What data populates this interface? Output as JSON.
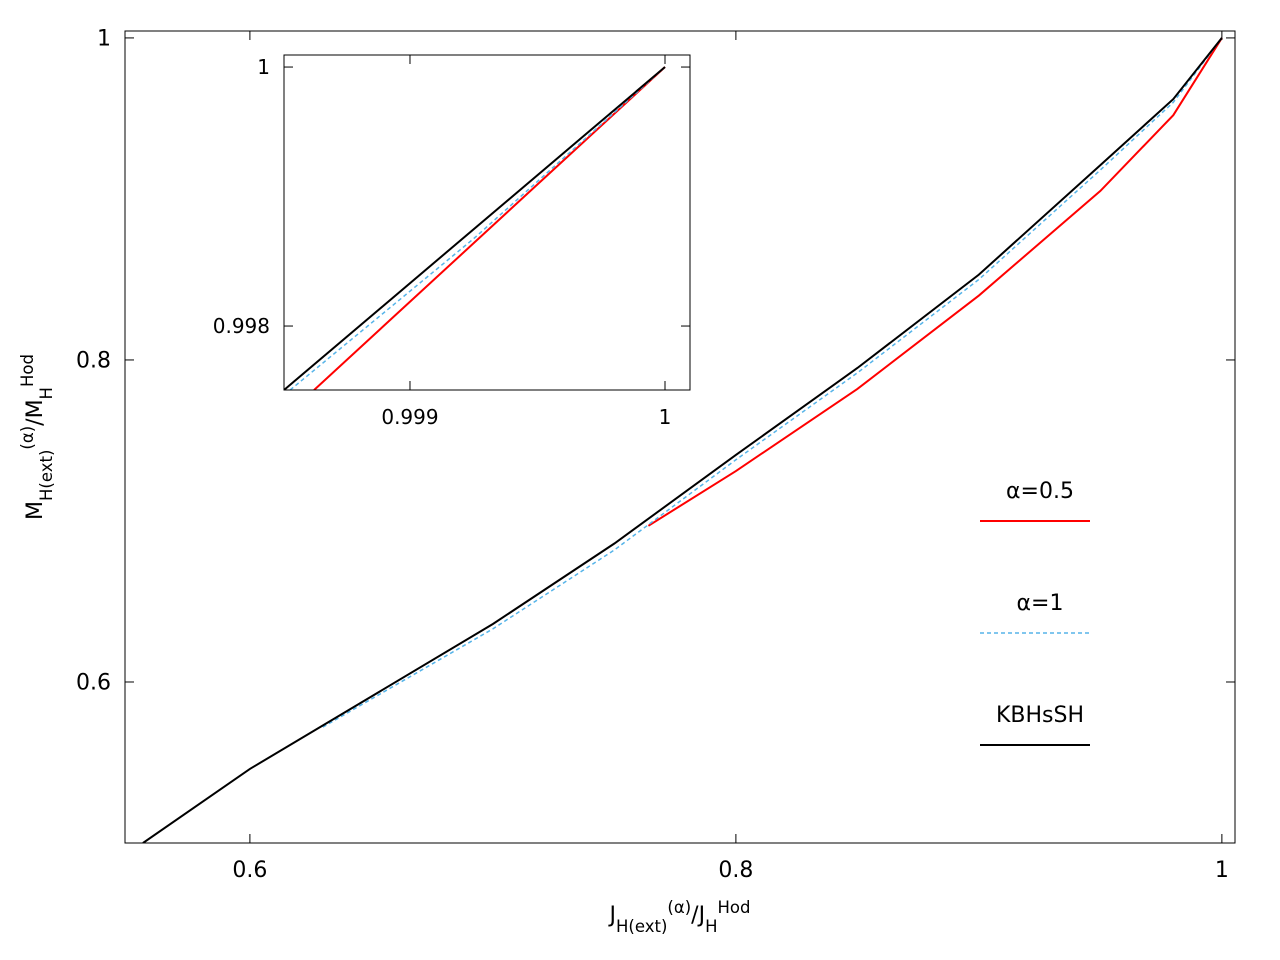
{
  "chart_data": [
    {
      "type": "line",
      "xlabel": [
        "J",
        "H(ext)",
        "(α)",
        "/J",
        "H",
        "Hod"
      ],
      "ylabel": [
        "M",
        "H(ext)",
        "(α)",
        "/M",
        "H",
        "Hod"
      ],
      "xlim": [
        0.5486,
        1.0054
      ],
      "ylim": [
        0.5,
        1.0043
      ],
      "xticks": [
        0.6,
        0.8,
        1
      ],
      "yticks": [
        0.6,
        0.8,
        1
      ],
      "legend": "right",
      "series": [
        {
          "name": "α=0.5",
          "color": "#ff0000",
          "dash": false,
          "x": [
            0.764,
            0.8,
            0.85,
            0.9,
            0.95,
            0.98,
            1
          ],
          "values": [
            0.697,
            0.731,
            0.782,
            0.84,
            0.905,
            0.952,
            1
          ]
        },
        {
          "name": "α=1",
          "color": "#56b4e9",
          "dash": true,
          "x": [
            0.63,
            0.7,
            0.75,
            0.8,
            0.85,
            0.9,
            0.95,
            0.98,
            1
          ],
          "values": [
            0.572,
            0.633,
            0.682,
            0.738,
            0.792,
            0.85,
            0.918,
            0.96,
            1
          ]
        },
        {
          "name": "KBHsSH",
          "color": "#000000",
          "dash": false,
          "x": [
            0.556,
            0.6,
            0.65,
            0.7,
            0.75,
            0.8,
            0.85,
            0.9,
            0.95,
            0.98,
            1
          ],
          "values": [
            0.5,
            0.546,
            0.591,
            0.636,
            0.686,
            0.741,
            0.795,
            0.853,
            0.921,
            0.962,
            1
          ]
        }
      ]
    },
    {
      "type": "line",
      "xlim": [
        0.998506,
        1.000098
      ],
      "ylim": [
        0.997506,
        1.000093
      ],
      "xticks": [
        0.999,
        1
      ],
      "yticks": [
        0.998,
        1
      ],
      "series": [
        {
          "color": "#ff0000",
          "dash": false,
          "x": [
            0.998624,
            1
          ],
          "values": [
            0.997506,
            1
          ]
        },
        {
          "color": "#56b4e9",
          "dash": true,
          "x": [
            0.99853,
            0.99925,
            1
          ],
          "values": [
            0.997506,
            0.998675,
            1
          ]
        },
        {
          "color": "#000000",
          "dash": false,
          "x": [
            0.998506,
            1
          ],
          "values": [
            0.997506,
            1
          ]
        }
      ]
    }
  ]
}
